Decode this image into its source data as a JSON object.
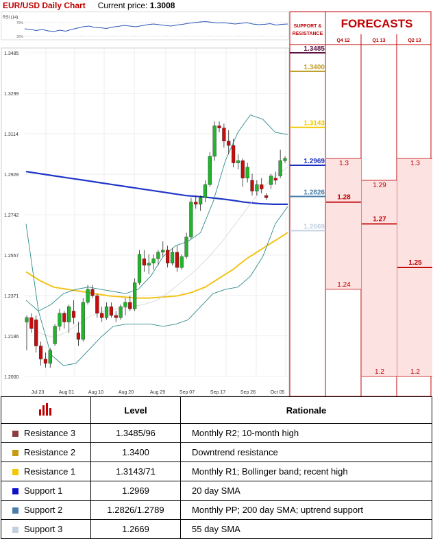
{
  "header": {
    "title": "EUR/USD Daily Chart",
    "price_label": "Current price:",
    "price_value": "1.3008"
  },
  "rsi": {
    "label": "RSI (14)",
    "tick_top": "70%",
    "tick_bottom": "30%",
    "values": [
      52,
      50,
      47,
      50,
      46,
      44,
      48,
      45,
      50,
      54,
      58,
      60,
      56,
      55,
      53,
      57,
      59,
      62,
      60,
      58,
      61,
      64,
      66,
      64,
      62,
      60,
      63,
      65,
      68,
      70,
      72,
      73,
      71,
      69,
      70,
      68,
      66,
      68,
      70,
      66,
      64,
      65,
      67,
      63,
      65,
      66
    ]
  },
  "forecast_panel": {
    "title": "FORECASTS",
    "sr_header": "SUPPORT & RESISTANCE",
    "columns": [
      "Q4 12",
      "Q1 13",
      "Q2 13"
    ]
  },
  "chart_data": {
    "type": "candlestick",
    "title": "EUR/USD Daily Chart",
    "ylim": [
      1.2,
      1.3485
    ],
    "yticks": [
      "1.3485",
      "1.3299",
      "1.3114",
      "1.2928",
      "1.2742",
      "1.2557",
      "1.2371",
      "1.2186",
      "1.2000"
    ],
    "xticks": [
      "Jul 23",
      "Aug 01",
      "Aug 10",
      "Aug 20",
      "Aug 29",
      "Sep 07",
      "Sep 17",
      "Sep 26",
      "Oct 05"
    ],
    "candles": [
      {
        "o": 1.225,
        "h": 1.228,
        "l": 1.212,
        "c": 1.227
      },
      {
        "o": 1.227,
        "h": 1.229,
        "l": 1.22,
        "c": 1.222
      },
      {
        "o": 1.226,
        "h": 1.228,
        "l": 1.211,
        "c": 1.214
      },
      {
        "o": 1.214,
        "h": 1.216,
        "l": 1.205,
        "c": 1.208
      },
      {
        "o": 1.208,
        "h": 1.211,
        "l": 1.204,
        "c": 1.206
      },
      {
        "o": 1.206,
        "h": 1.213,
        "l": 1.204,
        "c": 1.212
      },
      {
        "o": 1.215,
        "h": 1.224,
        "l": 1.214,
        "c": 1.223
      },
      {
        "o": 1.223,
        "h": 1.231,
        "l": 1.221,
        "c": 1.229
      },
      {
        "o": 1.229,
        "h": 1.23,
        "l": 1.222,
        "c": 1.225
      },
      {
        "o": 1.225,
        "h": 1.233,
        "l": 1.22,
        "c": 1.232
      },
      {
        "o": 1.23,
        "h": 1.235,
        "l": 1.224,
        "c": 1.227
      },
      {
        "o": 1.22,
        "h": 1.225,
        "l": 1.214,
        "c": 1.217
      },
      {
        "o": 1.217,
        "h": 1.236,
        "l": 1.216,
        "c": 1.234
      },
      {
        "o": 1.234,
        "h": 1.242,
        "l": 1.233,
        "c": 1.24
      },
      {
        "o": 1.24,
        "h": 1.242,
        "l": 1.236,
        "c": 1.237
      },
      {
        "o": 1.237,
        "h": 1.238,
        "l": 1.227,
        "c": 1.229
      },
      {
        "o": 1.229,
        "h": 1.232,
        "l": 1.225,
        "c": 1.227
      },
      {
        "o": 1.227,
        "h": 1.234,
        "l": 1.226,
        "c": 1.232
      },
      {
        "o": 1.232,
        "h": 1.234,
        "l": 1.227,
        "c": 1.228
      },
      {
        "o": 1.228,
        "h": 1.23,
        "l": 1.225,
        "c": 1.227
      },
      {
        "o": 1.227,
        "h": 1.233,
        "l": 1.226,
        "c": 1.232
      },
      {
        "o": 1.232,
        "h": 1.236,
        "l": 1.228,
        "c": 1.234
      },
      {
        "o": 1.234,
        "h": 1.237,
        "l": 1.23,
        "c": 1.231
      },
      {
        "o": 1.231,
        "h": 1.245,
        "l": 1.23,
        "c": 1.243
      },
      {
        "o": 1.243,
        "h": 1.258,
        "l": 1.242,
        "c": 1.256
      },
      {
        "o": 1.254,
        "h": 1.258,
        "l": 1.248,
        "c": 1.251
      },
      {
        "o": 1.251,
        "h": 1.256,
        "l": 1.247,
        "c": 1.252
      },
      {
        "o": 1.252,
        "h": 1.256,
        "l": 1.249,
        "c": 1.254
      },
      {
        "o": 1.254,
        "h": 1.258,
        "l": 1.251,
        "c": 1.257
      },
      {
        "o": 1.257,
        "h": 1.262,
        "l": 1.255,
        "c": 1.258
      },
      {
        "o": 1.258,
        "h": 1.26,
        "l": 1.25,
        "c": 1.252
      },
      {
        "o": 1.252,
        "h": 1.259,
        "l": 1.251,
        "c": 1.257
      },
      {
        "o": 1.257,
        "h": 1.26,
        "l": 1.248,
        "c": 1.25
      },
      {
        "o": 1.25,
        "h": 1.256,
        "l": 1.249,
        "c": 1.255
      },
      {
        "o": 1.255,
        "h": 1.266,
        "l": 1.254,
        "c": 1.264
      },
      {
        "o": 1.264,
        "h": 1.282,
        "l": 1.263,
        "c": 1.28
      },
      {
        "o": 1.28,
        "h": 1.283,
        "l": 1.277,
        "c": 1.279
      },
      {
        "o": 1.279,
        "h": 1.283,
        "l": 1.276,
        "c": 1.282
      },
      {
        "o": 1.282,
        "h": 1.29,
        "l": 1.28,
        "c": 1.288
      },
      {
        "o": 1.288,
        "h": 1.303,
        "l": 1.287,
        "c": 1.301
      },
      {
        "o": 1.301,
        "h": 1.317,
        "l": 1.299,
        "c": 1.315
      },
      {
        "o": 1.315,
        "h": 1.317,
        "l": 1.312,
        "c": 1.314
      },
      {
        "o": 1.314,
        "h": 1.316,
        "l": 1.305,
        "c": 1.308
      },
      {
        "o": 1.308,
        "h": 1.313,
        "l": 1.302,
        "c": 1.306
      },
      {
        "o": 1.306,
        "h": 1.309,
        "l": 1.296,
        "c": 1.298
      },
      {
        "o": 1.298,
        "h": 1.302,
        "l": 1.295,
        "c": 1.299
      },
      {
        "o": 1.299,
        "h": 1.3,
        "l": 1.287,
        "c": 1.291
      },
      {
        "o": 1.291,
        "h": 1.298,
        "l": 1.289,
        "c": 1.296
      },
      {
        "o": 1.29,
        "h": 1.293,
        "l": 1.283,
        "c": 1.285
      },
      {
        "o": 1.285,
        "h": 1.29,
        "l": 1.283,
        "c": 1.288
      },
      {
        "o": 1.288,
        "h": 1.291,
        "l": 1.284,
        "c": 1.286
      },
      {
        "o": 1.283,
        "h": 1.284,
        "l": 1.281,
        "c": 1.282
      },
      {
        "o": 1.288,
        "h": 1.293,
        "l": 1.286,
        "c": 1.292
      },
      {
        "o": 1.291,
        "h": 1.294,
        "l": 1.288,
        "c": 1.29
      },
      {
        "o": 1.292,
        "h": 1.304,
        "l": 1.291,
        "c": 1.299
      },
      {
        "o": 1.299,
        "h": 1.301,
        "l": 1.298,
        "c": 1.3
      }
    ],
    "overlays": [
      {
        "kind": "sma200",
        "color": "#1f35c7",
        "values": [
          1.294,
          1.293,
          1.292,
          1.291,
          1.29,
          1.289,
          1.288,
          1.287,
          1.286,
          1.285,
          1.284,
          1.283,
          1.2825,
          1.2818,
          1.281,
          1.28,
          1.2793,
          1.279,
          1.279
        ]
      },
      {
        "kind": "sma55",
        "color": "#f2c318",
        "values": [
          1.248,
          1.244,
          1.241,
          1.24,
          1.239,
          1.238,
          1.237,
          1.2365,
          1.236,
          1.236,
          1.2365,
          1.237,
          1.2385,
          1.241,
          1.245,
          1.249,
          1.254,
          1.258,
          1.262,
          1.266
        ]
      },
      {
        "kind": "sma20",
        "color": "#d8d8d8",
        "values": [
          1.225,
          1.22,
          1.218,
          1.22,
          1.224,
          1.228,
          1.23,
          1.231,
          1.232,
          1.233,
          1.235,
          1.239,
          1.244,
          1.249,
          1.255,
          1.262,
          1.27,
          1.278,
          1.286,
          1.292,
          1.296
        ]
      },
      {
        "kind": "bb_upper",
        "color": "#2e8a8a",
        "values": [
          1.235,
          1.23,
          1.233,
          1.238,
          1.24,
          1.241,
          1.24,
          1.239,
          1.238,
          1.24,
          1.246,
          1.255,
          1.26,
          1.262,
          1.266,
          1.28,
          1.299,
          1.312,
          1.32,
          1.318,
          1.312,
          1.311
        ]
      },
      {
        "kind": "bb_lower",
        "color": "#2e8a8a",
        "values": [
          1.27,
          1.23,
          1.21,
          1.205,
          1.206,
          1.212,
          1.218,
          1.223,
          1.224,
          1.224,
          1.224,
          1.223,
          1.224,
          1.226,
          1.232,
          1.238,
          1.24,
          1.241,
          1.246,
          1.255,
          1.27,
          1.278
        ]
      }
    ],
    "levels": [
      {
        "value": 1.3485,
        "label": "1.3485",
        "color": "#5a1140"
      },
      {
        "value": 1.34,
        "label": "1.3400",
        "color": "#bfa02a"
      },
      {
        "value": 1.3143,
        "label": "1.3143",
        "color": "#f3c800"
      },
      {
        "value": 1.2969,
        "label": "1.2969",
        "color": "#1a2dbf"
      },
      {
        "value": 1.2826,
        "label": "1.2826",
        "color": "#4a7dab"
      },
      {
        "value": 1.2669,
        "label": "1.2669",
        "color": "#c3d1df"
      }
    ],
    "forecasts": [
      {
        "column": "Q4 12",
        "high": {
          "value": 1.3,
          "label": "1.3"
        },
        "mid": {
          "value": 1.28,
          "label": "1.28"
        },
        "low": {
          "value": 1.24,
          "label": "1.24"
        }
      },
      {
        "column": "Q1 13",
        "high": {
          "value": 1.29,
          "label": "1.29"
        },
        "mid": {
          "value": 1.27,
          "label": "1.27"
        },
        "low": {
          "value": 1.2,
          "label": "1.2"
        }
      },
      {
        "column": "Q2 13",
        "high": {
          "value": 1.3,
          "label": "1.3"
        },
        "mid": {
          "value": 1.25,
          "label": "1.25"
        },
        "low": {
          "value": 1.2,
          "label": "1.2"
        }
      }
    ]
  },
  "table": {
    "headers": {
      "level": "Level",
      "rationale": "Rationale"
    },
    "rows": [
      {
        "name": "Resistance 3",
        "level": "1.3485/96",
        "rationale": "Monthly R2; 10-month high",
        "color": "#8c3e3e"
      },
      {
        "name": "Resistance 2",
        "level": "1.3400",
        "rationale": "Downtrend resistance",
        "color": "#c69a14"
      },
      {
        "name": "Resistance 1",
        "level": "1.3143/71",
        "rationale": "Monthly R1; Bollinger band; recent high",
        "color": "#f3c800"
      },
      {
        "name": "Support 1",
        "level": "1.2969",
        "rationale": "20 day SMA",
        "color": "#1010c8"
      },
      {
        "name": "Support 2",
        "level": "1.2826/1.2789",
        "rationale": "Monthly PP; 200 day SMA; uptrend support",
        "color": "#4a7dab"
      },
      {
        "name": "Support 3",
        "level": "1.2669",
        "rationale": "55 day SMA",
        "color": "#c3d1df"
      }
    ]
  }
}
